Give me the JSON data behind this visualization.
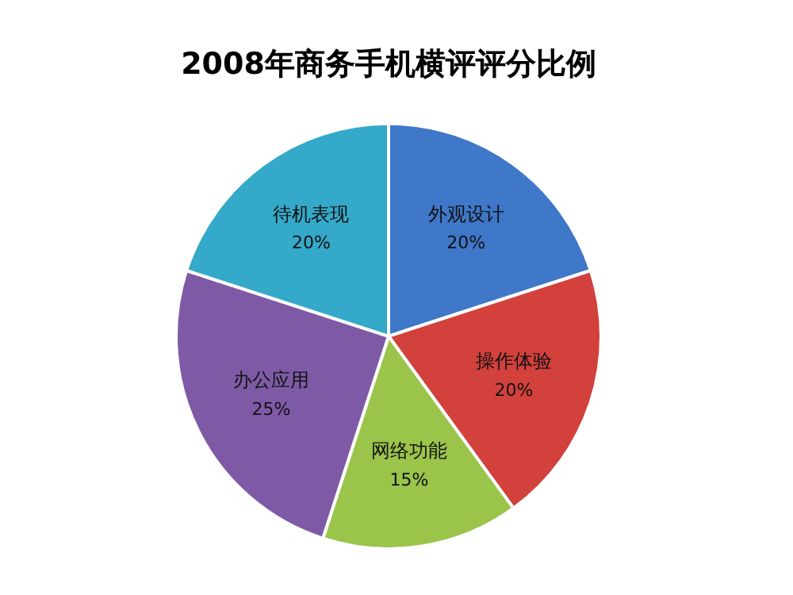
{
  "chart_data": {
    "type": "pie",
    "title": "2008年商务手机横评评分比例",
    "categories": [
      "外观设计",
      "操作体验",
      "网络功能",
      "办公应用",
      "待机表现"
    ],
    "values": [
      20,
      20,
      15,
      25,
      20
    ],
    "colors": [
      "#3f77c9",
      "#d2413c",
      "#9bc44a",
      "#7e5aa6",
      "#34a9c9"
    ],
    "value_labels": [
      "20%",
      "20%",
      "15%",
      "25%",
      "20%"
    ],
    "legend": false
  }
}
